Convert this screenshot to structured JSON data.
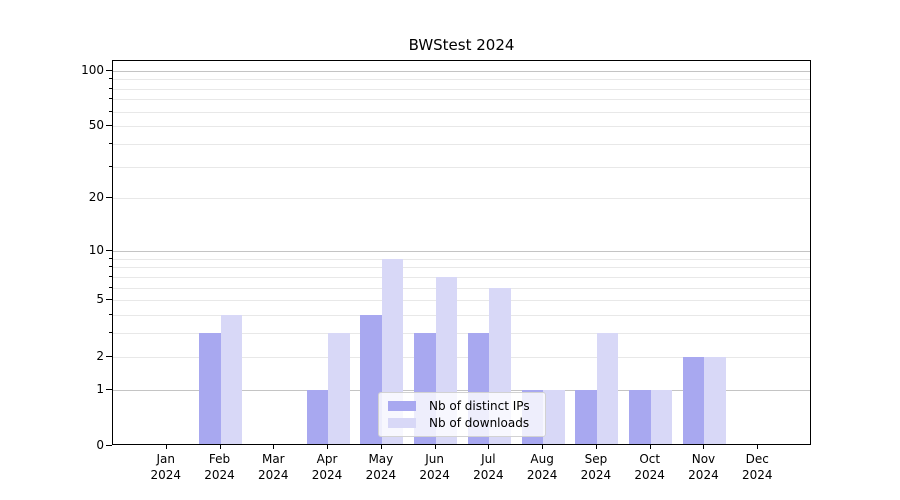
{
  "chart_data": {
    "type": "bar",
    "title": "BWStest 2024",
    "categories": [
      "Jan",
      "Feb",
      "Mar",
      "Apr",
      "May",
      "Jun",
      "Jul",
      "Aug",
      "Sep",
      "Oct",
      "Nov",
      "Dec"
    ],
    "year_label": "2024",
    "series": [
      {
        "name": "Nb of distinct IPs",
        "color": "#a8a8f0",
        "values": [
          0,
          3,
          0,
          1,
          4,
          3,
          3,
          1,
          1,
          1,
          2,
          0
        ]
      },
      {
        "name": "Nb of downloads",
        "color": "#d8d8f7",
        "values": [
          0,
          4,
          0,
          3,
          9,
          7,
          6,
          1,
          3,
          1,
          2,
          0
        ]
      }
    ],
    "yscale": "log1p",
    "yticks": [
      0,
      1,
      2,
      5,
      10,
      20,
      50,
      100
    ],
    "major_grid_values": [
      1,
      10,
      100
    ],
    "ylim": [
      0,
      112.6
    ],
    "grid": true,
    "legend_position": "lower center",
    "colors": {
      "major_grid": "#c4c4c4",
      "minor_grid": "#e8e8e8",
      "spine": "#000000",
      "text": "#000000"
    }
  }
}
